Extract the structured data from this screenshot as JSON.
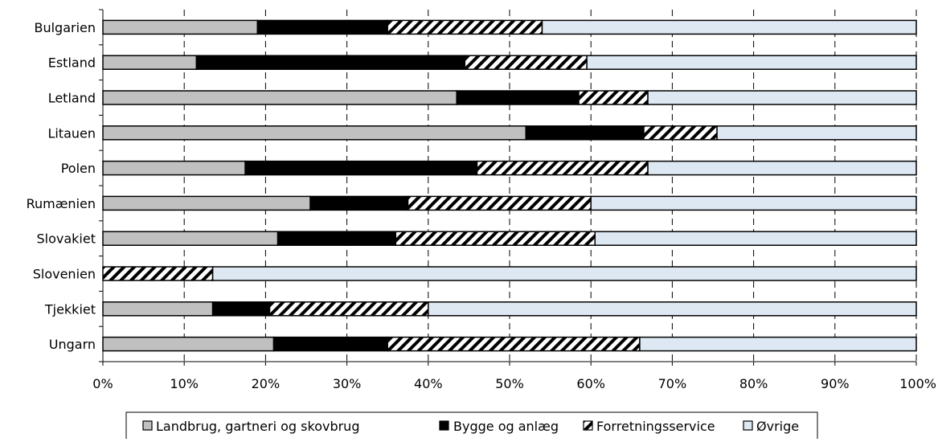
{
  "chart_data": {
    "type": "bar",
    "orientation": "horizontal",
    "stacked": "percent",
    "categories": [
      "Bulgarien",
      "Estland",
      "Letland",
      "Litauen",
      "Polen",
      "Rumænien",
      "Slovakiet",
      "Slovenien",
      "Tjekkiet",
      "Ungarn"
    ],
    "series": [
      {
        "name": "Landbrug, gartneri og skovbrug",
        "values": [
          19,
          11.5,
          43.5,
          52,
          17.5,
          25.5,
          21.5,
          0,
          13.5,
          21
        ],
        "color": "#c0c0c0",
        "pattern": "solid"
      },
      {
        "name": "Bygge og anlæg",
        "values": [
          16,
          33,
          15,
          14.5,
          28.5,
          12,
          14.5,
          0,
          7,
          14
        ],
        "color": "#000000",
        "pattern": "solid"
      },
      {
        "name": "Forretningsservice",
        "values": [
          19,
          15,
          8.5,
          9,
          21,
          22.5,
          24.5,
          13.5,
          19.5,
          31
        ],
        "color": "#ffffff",
        "pattern": "hatch"
      },
      {
        "name": "Øvrige",
        "values": [
          46,
          40.5,
          33,
          24.5,
          33,
          40,
          39.5,
          86.5,
          60,
          34
        ],
        "color": "#dde8f3",
        "pattern": "solid"
      }
    ],
    "xlim": [
      0,
      100
    ],
    "x_ticks": [
      "0%",
      "10%",
      "20%",
      "30%",
      "40%",
      "50%",
      "60%",
      "70%",
      "80%",
      "90%",
      "100%"
    ],
    "grid": "vertical dashed",
    "legend": "bottom"
  }
}
